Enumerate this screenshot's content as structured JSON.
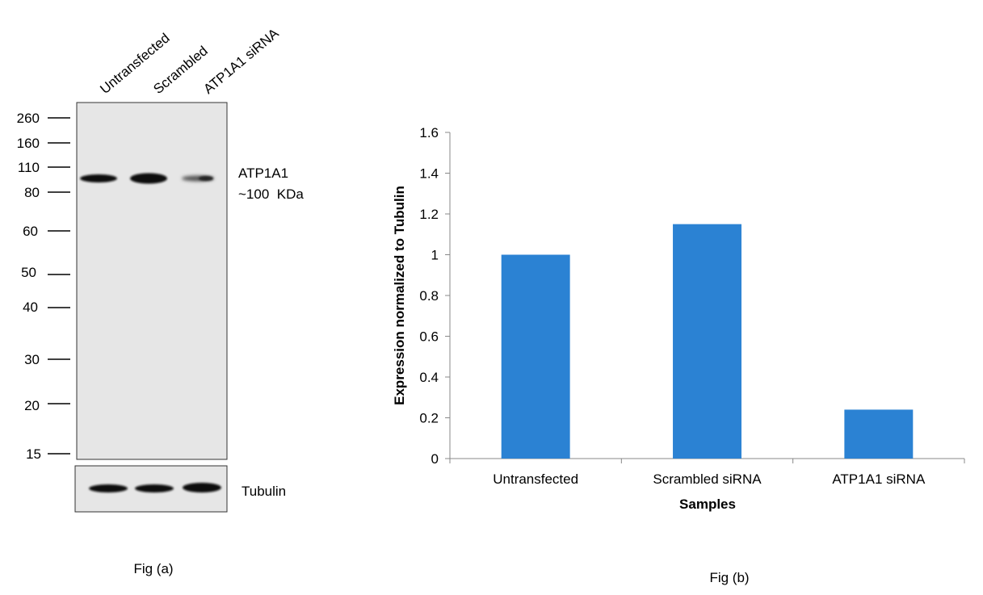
{
  "fig_a": {
    "lane_labels": [
      "Untransfected",
      "Scrambled",
      "ATP1A1 siRNA"
    ],
    "mw_markers": [
      "260",
      "160",
      "110",
      "80",
      "60",
      "50",
      "40",
      "30",
      "20",
      "15"
    ],
    "target_label_line1": "ATP1A1",
    "target_label_line2": "~100  KDa",
    "loading_control_label": "Tubulin",
    "caption": "Fig (a)"
  },
  "fig_b": {
    "caption": "Fig (b)"
  },
  "chart_data": {
    "type": "bar",
    "categories": [
      "Untransfected",
      "Scrambled siRNA",
      "ATP1A1 siRNA"
    ],
    "values": [
      1.0,
      1.15,
      0.24
    ],
    "xlabel": "Samples",
    "ylabel": "Expression normalized to Tubulin",
    "ylim": [
      0,
      1.6
    ],
    "yticks": [
      0,
      0.2,
      0.4,
      0.6,
      0.8,
      1,
      1.2,
      1.4,
      1.6
    ],
    "ytick_labels": [
      "0",
      "0.2",
      "0.4",
      "0.6",
      "0.8",
      "1",
      "1.2",
      "1.4",
      "1.6"
    ],
    "bar_color": "#2b82d3",
    "grid": false,
    "legend": "none"
  }
}
